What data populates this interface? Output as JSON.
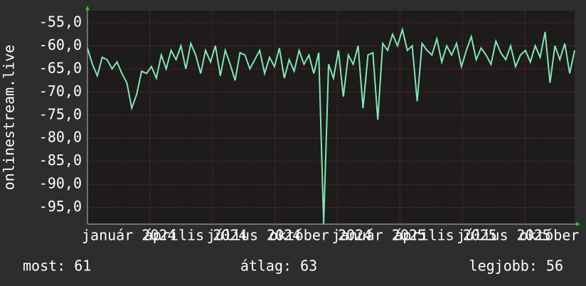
{
  "chart_data": {
    "type": "line",
    "ylabel": "onlinestream.live",
    "xlim": [
      0,
      99
    ],
    "xticks": [
      {
        "value": 0,
        "label": "január 2024"
      },
      {
        "value": 12.7,
        "label": "április 2024"
      },
      {
        "value": 25.4,
        "label": "július 2024"
      },
      {
        "value": 38.1,
        "label": "október 2024"
      },
      {
        "value": 50.8,
        "label": "január 2025"
      },
      {
        "value": 63.5,
        "label": "április 2025"
      },
      {
        "value": 76.2,
        "label": "július 2025"
      },
      {
        "value": 88.9,
        "label": "október 2025"
      }
    ],
    "ylim": [
      -98.6,
      -52.4
    ],
    "yticks": [
      {
        "value": -55,
        "label": "-55,0"
      },
      {
        "value": -60,
        "label": "-60,0"
      },
      {
        "value": -65,
        "label": "-65,0"
      },
      {
        "value": -70,
        "label": "-70,0"
      },
      {
        "value": -75,
        "label": "-75,0"
      },
      {
        "value": -80,
        "label": "-80,0"
      },
      {
        "value": -85,
        "label": "-85,0"
      },
      {
        "value": -90,
        "label": "-90,0"
      },
      {
        "value": -95,
        "label": "-95,0"
      }
    ],
    "grid": true,
    "color": "#7fe7b4",
    "values": [
      -60.5,
      -64,
      -66.5,
      -62.5,
      -63,
      -65,
      -63.5,
      -66,
      -68,
      -73.5,
      -70.5,
      -65.5,
      -66,
      -64.5,
      -67,
      -62,
      -65,
      -61,
      -63,
      -60,
      -65,
      -59.5,
      -62,
      -66,
      -61,
      -63.5,
      -60,
      -66.5,
      -61,
      -64,
      -67.5,
      -61.5,
      -62,
      -65,
      -63,
      -61,
      -66,
      -62.5,
      -64.5,
      -60.5,
      -67,
      -63,
      -65.5,
      -61,
      -64,
      -62,
      -66,
      -61.5,
      -98.5,
      -64,
      -67,
      -61,
      -71,
      -62,
      -64,
      -60,
      -73.5,
      -62,
      -61.5,
      -76,
      -59.5,
      -61,
      -57.5,
      -60,
      -56.5,
      -61,
      -60,
      -72,
      -59.5,
      -61,
      -62,
      -58.5,
      -63.5,
      -60,
      -62,
      -59.5,
      -64.5,
      -61,
      -58,
      -63,
      -60.5,
      -62,
      -64,
      -59,
      -61.5,
      -63,
      -60,
      -64.5,
      -62,
      -61,
      -63.5,
      -60,
      -62.5,
      -57,
      -68,
      -60,
      -63,
      -59.5,
      -66,
      -61
    ],
    "footer": [
      "most: 61",
      "átlag: 63",
      "legjobb: 56"
    ]
  }
}
